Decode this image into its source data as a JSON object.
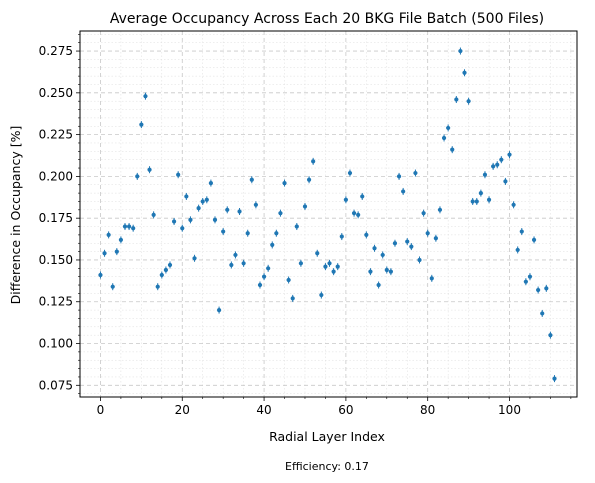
{
  "chart_data": {
    "type": "scatter",
    "title": "Average Occupancy Across Each 20 BKG File Batch (500 Files)",
    "xlabel": "Radial Layer Index",
    "ylabel": "Difference in Occupancy [%]",
    "xlim": [
      -5,
      116.5
    ],
    "ylim": [
      0.068,
      0.287
    ],
    "xticks": [
      0,
      20,
      40,
      60,
      80,
      100
    ],
    "xtick_labels": [
      "0",
      "20",
      "40",
      "60",
      "80",
      "100"
    ],
    "yticks": [
      0.075,
      0.1,
      0.125,
      0.15,
      0.175,
      0.2,
      0.225,
      0.25,
      0.275
    ],
    "ytick_labels": [
      "0.075",
      "0.100",
      "0.125",
      "0.150",
      "0.175",
      "0.200",
      "0.225",
      "0.250",
      "0.275"
    ],
    "grid": true,
    "minor_grid": true,
    "marker_color": "#1f77b4",
    "series": [
      {
        "x": [
          0,
          1,
          2,
          3,
          4,
          5,
          6,
          7,
          8,
          9,
          10,
          11,
          12,
          13,
          14,
          15,
          16,
          17,
          18,
          19,
          20,
          21,
          22,
          23,
          24,
          25,
          26,
          27,
          28,
          29,
          30,
          31,
          32,
          33,
          34,
          35,
          36,
          37,
          38,
          39,
          40,
          41,
          42,
          43,
          44,
          45,
          46,
          47,
          48,
          49,
          50,
          51,
          52,
          53,
          54,
          55,
          56,
          57,
          58,
          59,
          60,
          61,
          62,
          63,
          64,
          65,
          66,
          67,
          68,
          69,
          70,
          71,
          72,
          73,
          74,
          75,
          76,
          77,
          78,
          79,
          80,
          81,
          82,
          83,
          84,
          85,
          86,
          87,
          88,
          89,
          90,
          91,
          92,
          93,
          94,
          95,
          96,
          97,
          98,
          99,
          100,
          101,
          102,
          103,
          104,
          105,
          106,
          107,
          108,
          109,
          110,
          111
        ],
        "y": [
          0.141,
          0.154,
          0.165,
          0.134,
          0.155,
          0.162,
          0.17,
          0.17,
          0.169,
          0.2,
          0.231,
          0.248,
          0.204,
          0.177,
          0.134,
          0.141,
          0.144,
          0.147,
          0.173,
          0.201,
          0.169,
          0.188,
          0.174,
          0.151,
          0.181,
          0.185,
          0.186,
          0.196,
          0.174,
          0.12,
          0.167,
          0.18,
          0.147,
          0.153,
          0.179,
          0.148,
          0.166,
          0.198,
          0.183,
          0.135,
          0.14,
          0.145,
          0.159,
          0.166,
          0.178,
          0.196,
          0.138,
          0.127,
          0.17,
          0.148,
          0.182,
          0.198,
          0.209,
          0.154,
          0.129,
          0.146,
          0.148,
          0.143,
          0.146,
          0.164,
          0.186,
          0.202,
          0.178,
          0.177,
          0.188,
          0.165,
          0.143,
          0.157,
          0.135,
          0.153,
          0.144,
          0.143,
          0.16,
          0.2,
          0.191,
          0.161,
          0.158,
          0.202,
          0.15,
          0.178,
          0.166,
          0.139,
          0.163,
          0.18,
          0.223,
          0.229,
          0.216,
          0.246,
          0.275,
          0.262,
          0.245,
          0.185,
          0.185,
          0.19,
          0.201,
          0.186,
          0.206,
          0.207,
          0.21,
          0.197,
          0.213,
          0.183,
          0.156,
          0.167,
          0.137,
          0.14,
          0.162,
          0.132,
          0.118,
          0.133,
          0.105,
          0.079
        ]
      }
    ]
  },
  "footer": {
    "efficiency_text": "Efficiency: 0.17"
  }
}
